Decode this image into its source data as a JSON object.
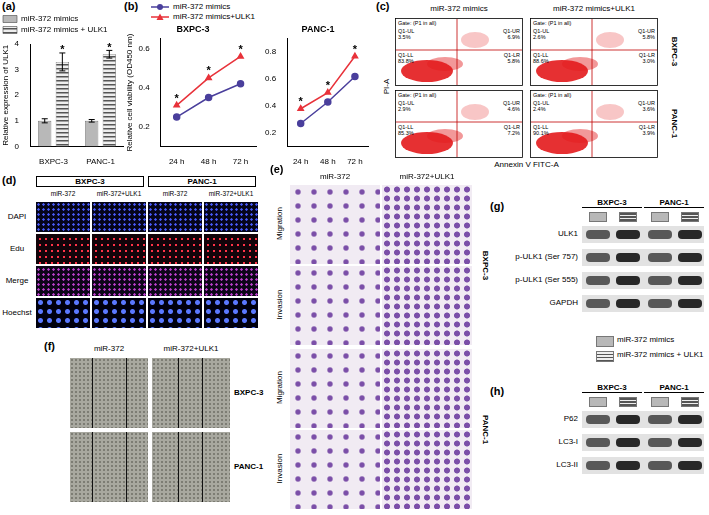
{
  "chart_data": [
    {
      "label": "(a)",
      "type": "bar",
      "ylabel": "Relative expression of ULK1",
      "categories": [
        "BXPC-3",
        "PANC-1"
      ],
      "series": [
        {
          "name": "miR-372 mimics",
          "color": "#b8b8b8",
          "values": [
            1.0,
            1.0
          ],
          "errors": [
            0.08,
            0.05
          ],
          "annotations": [
            null,
            null
          ]
        },
        {
          "name": "miR-372 mimics + ULK1",
          "color": "#555555",
          "values": [
            3.3,
            3.6
          ],
          "errors": [
            0.35,
            0.15
          ],
          "annotations": [
            "*",
            "*"
          ]
        }
      ],
      "ylim": [
        0,
        4
      ],
      "yticks": [
        0,
        1,
        2,
        3,
        4
      ],
      "legend": "top",
      "grid": false
    },
    {
      "label": "(b)",
      "type": "line",
      "ylabel": "Relative cell viability (OD450 nm)",
      "categories": [
        "24 h",
        "48 h",
        "72 h"
      ],
      "legend": "top",
      "grid": false,
      "series": [
        {
          "name": "miR-372 mimics",
          "color": "#4a3f9c",
          "marker": "circle"
        },
        {
          "name": "miR-372 mimics+ULK1",
          "color": "#e8323a",
          "marker": "triangle"
        }
      ],
      "panels": [
        {
          "title": "BXPC-3",
          "ylim": [
            0.1,
            0.65
          ],
          "yticks": [
            0.2,
            0.4,
            0.6
          ],
          "values": [
            [
              0.25,
              0.35,
              0.42
            ],
            [
              0.31,
              0.45,
              0.56
            ]
          ],
          "annotations": [
            [
              null,
              null,
              null
            ],
            [
              "*",
              "*",
              "*"
            ]
          ]
        },
        {
          "title": "PANC-1",
          "ylim": [
            0.1,
            0.9
          ],
          "yticks": [
            0.2,
            0.4,
            0.6,
            0.8
          ],
          "values": [
            [
              0.27,
              0.43,
              0.62
            ],
            [
              0.38,
              0.5,
              0.77
            ]
          ],
          "annotations": [
            [
              null,
              null,
              null
            ],
            [
              "*",
              "*",
              "*"
            ]
          ]
        }
      ]
    }
  ],
  "panels": {
    "c": {
      "label": "(c)",
      "columns": [
        "miR-372 mimics",
        "miR-372 mimics+ULK1"
      ],
      "rows": [
        "BXPC-3",
        "PANC-1"
      ],
      "ylabel": "PI-A",
      "xlabel": "Annexin V FITC-A",
      "gate": "Gate: (P1 in all)",
      "quadrants": [
        "Q1-UL",
        "Q1-UR",
        "Q1-LL",
        "Q1-LR"
      ],
      "plots": [
        [
          [
            "3.5%",
            "6.9%",
            "83.8%",
            "5.8%"
          ],
          [
            "2.6%",
            "5.8%",
            "88.6%",
            "3.0%"
          ]
        ],
        [
          [
            "2.9%",
            "4.6%",
            "85.3%",
            "7.2%"
          ],
          [
            "2.4%",
            "3.6%",
            "90.1%",
            "3.9%"
          ]
        ]
      ]
    },
    "d": {
      "label": "(d)",
      "groups": [
        "BXPC-3",
        "PANC-1"
      ],
      "columns": [
        "miR-372",
        "miR-372+ULK1"
      ],
      "rows": [
        "DAPI",
        "Edu",
        "Merge",
        "Hoechst"
      ]
    },
    "e": {
      "label": "(e)",
      "columns": [
        "miR-372",
        "miR-372+ULK1"
      ],
      "groups": [
        "BXPC-3",
        "PANC-1"
      ],
      "rows": [
        "Migration",
        "Invasion"
      ]
    },
    "f": {
      "label": "(f)",
      "columns": [
        "miR-372",
        "miR-372+ULK1"
      ],
      "rows": [
        "BXPC-3",
        "PANC-1"
      ]
    },
    "g": {
      "label": "(g)",
      "groups": [
        "BXPC-3",
        "PANC-1"
      ],
      "rows": [
        "ULK1",
        "p-ULK1 (Ser 757)",
        "p-ULK1 (Ser 555)",
        "GAPDH"
      ],
      "legend_entries": [
        "miR-372 mimics",
        "miR-372 mimics + ULK1"
      ]
    },
    "h": {
      "label": "(h)",
      "groups": [
        "BXPC-3",
        "PANC-1"
      ],
      "rows": [
        "P62",
        "LC3-I",
        "LC3-II"
      ]
    }
  }
}
